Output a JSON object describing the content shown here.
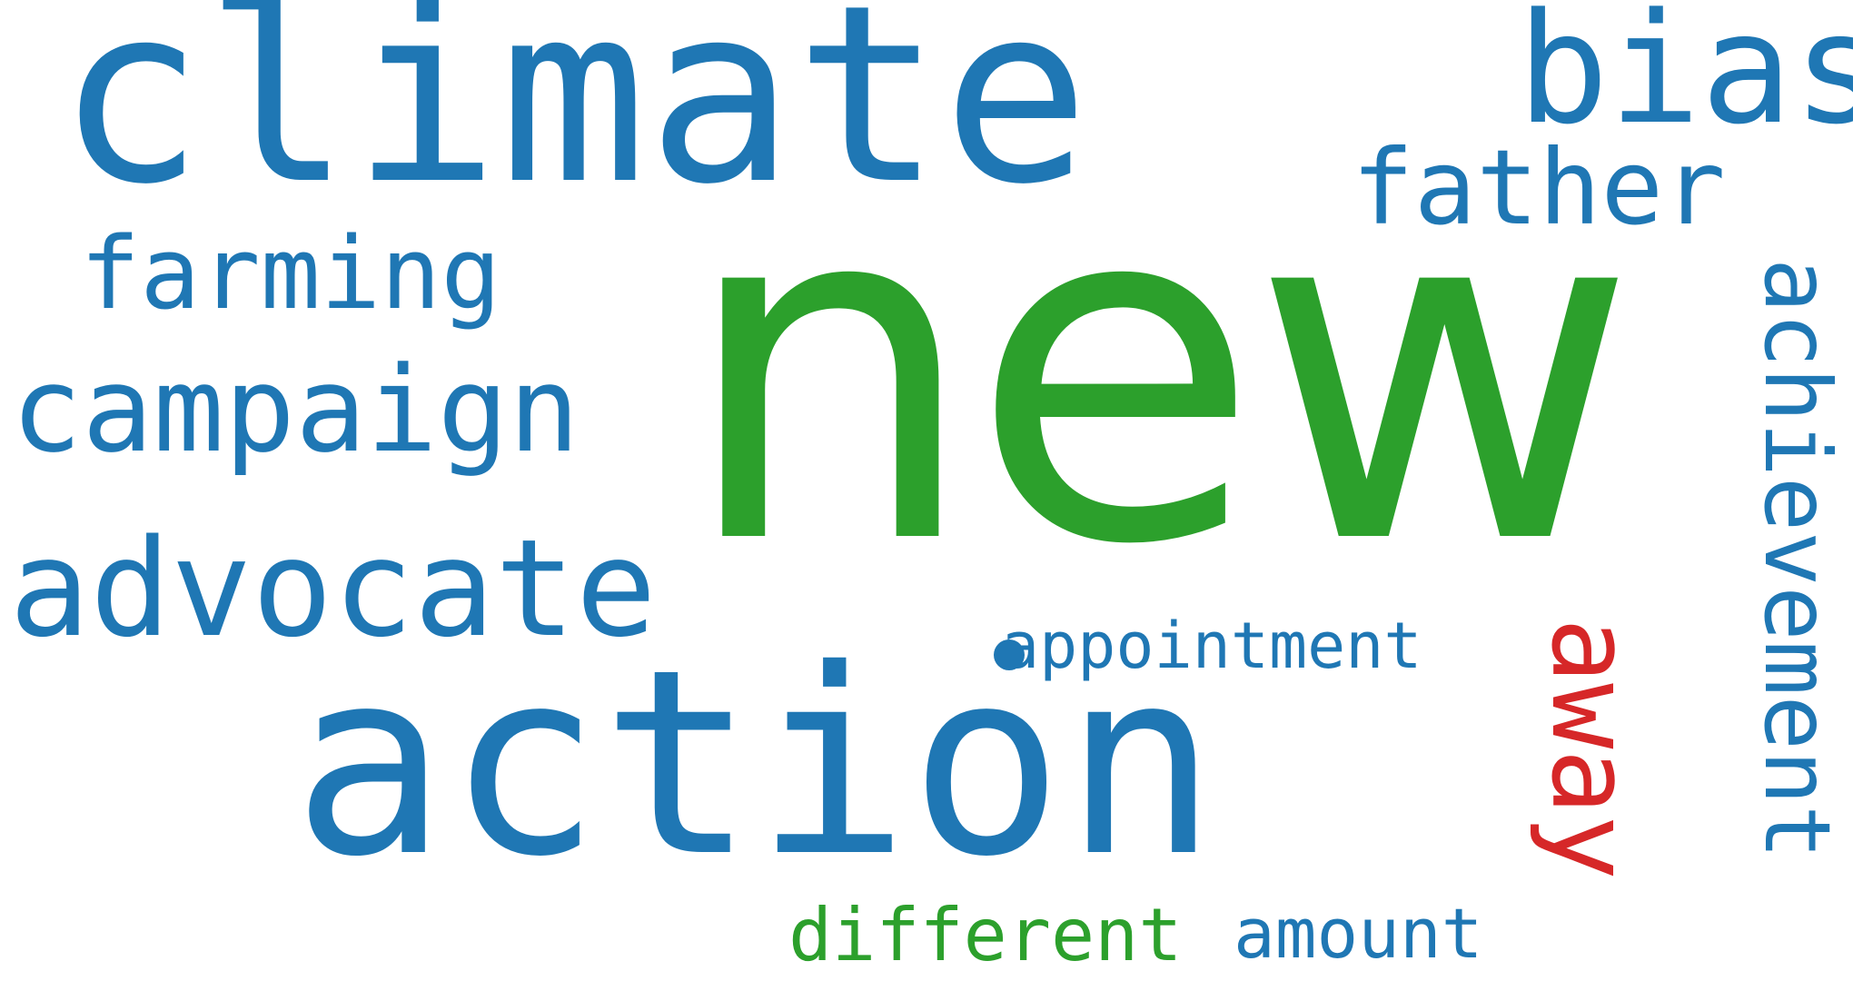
{
  "colors": {
    "blue": "#1f77b4",
    "green": "#2ca02c",
    "red": "#d62728",
    "background": "#ffffff"
  },
  "words": {
    "climate": "climate",
    "new": "new",
    "action": "action",
    "bias": "bias",
    "father": "father",
    "farming": "farming",
    "campaign": "campaign",
    "advocate": "advocate",
    "appointment": "appointment",
    "away": "away",
    "achievement": "achievement",
    "different": "different",
    "amount": "amount"
  }
}
